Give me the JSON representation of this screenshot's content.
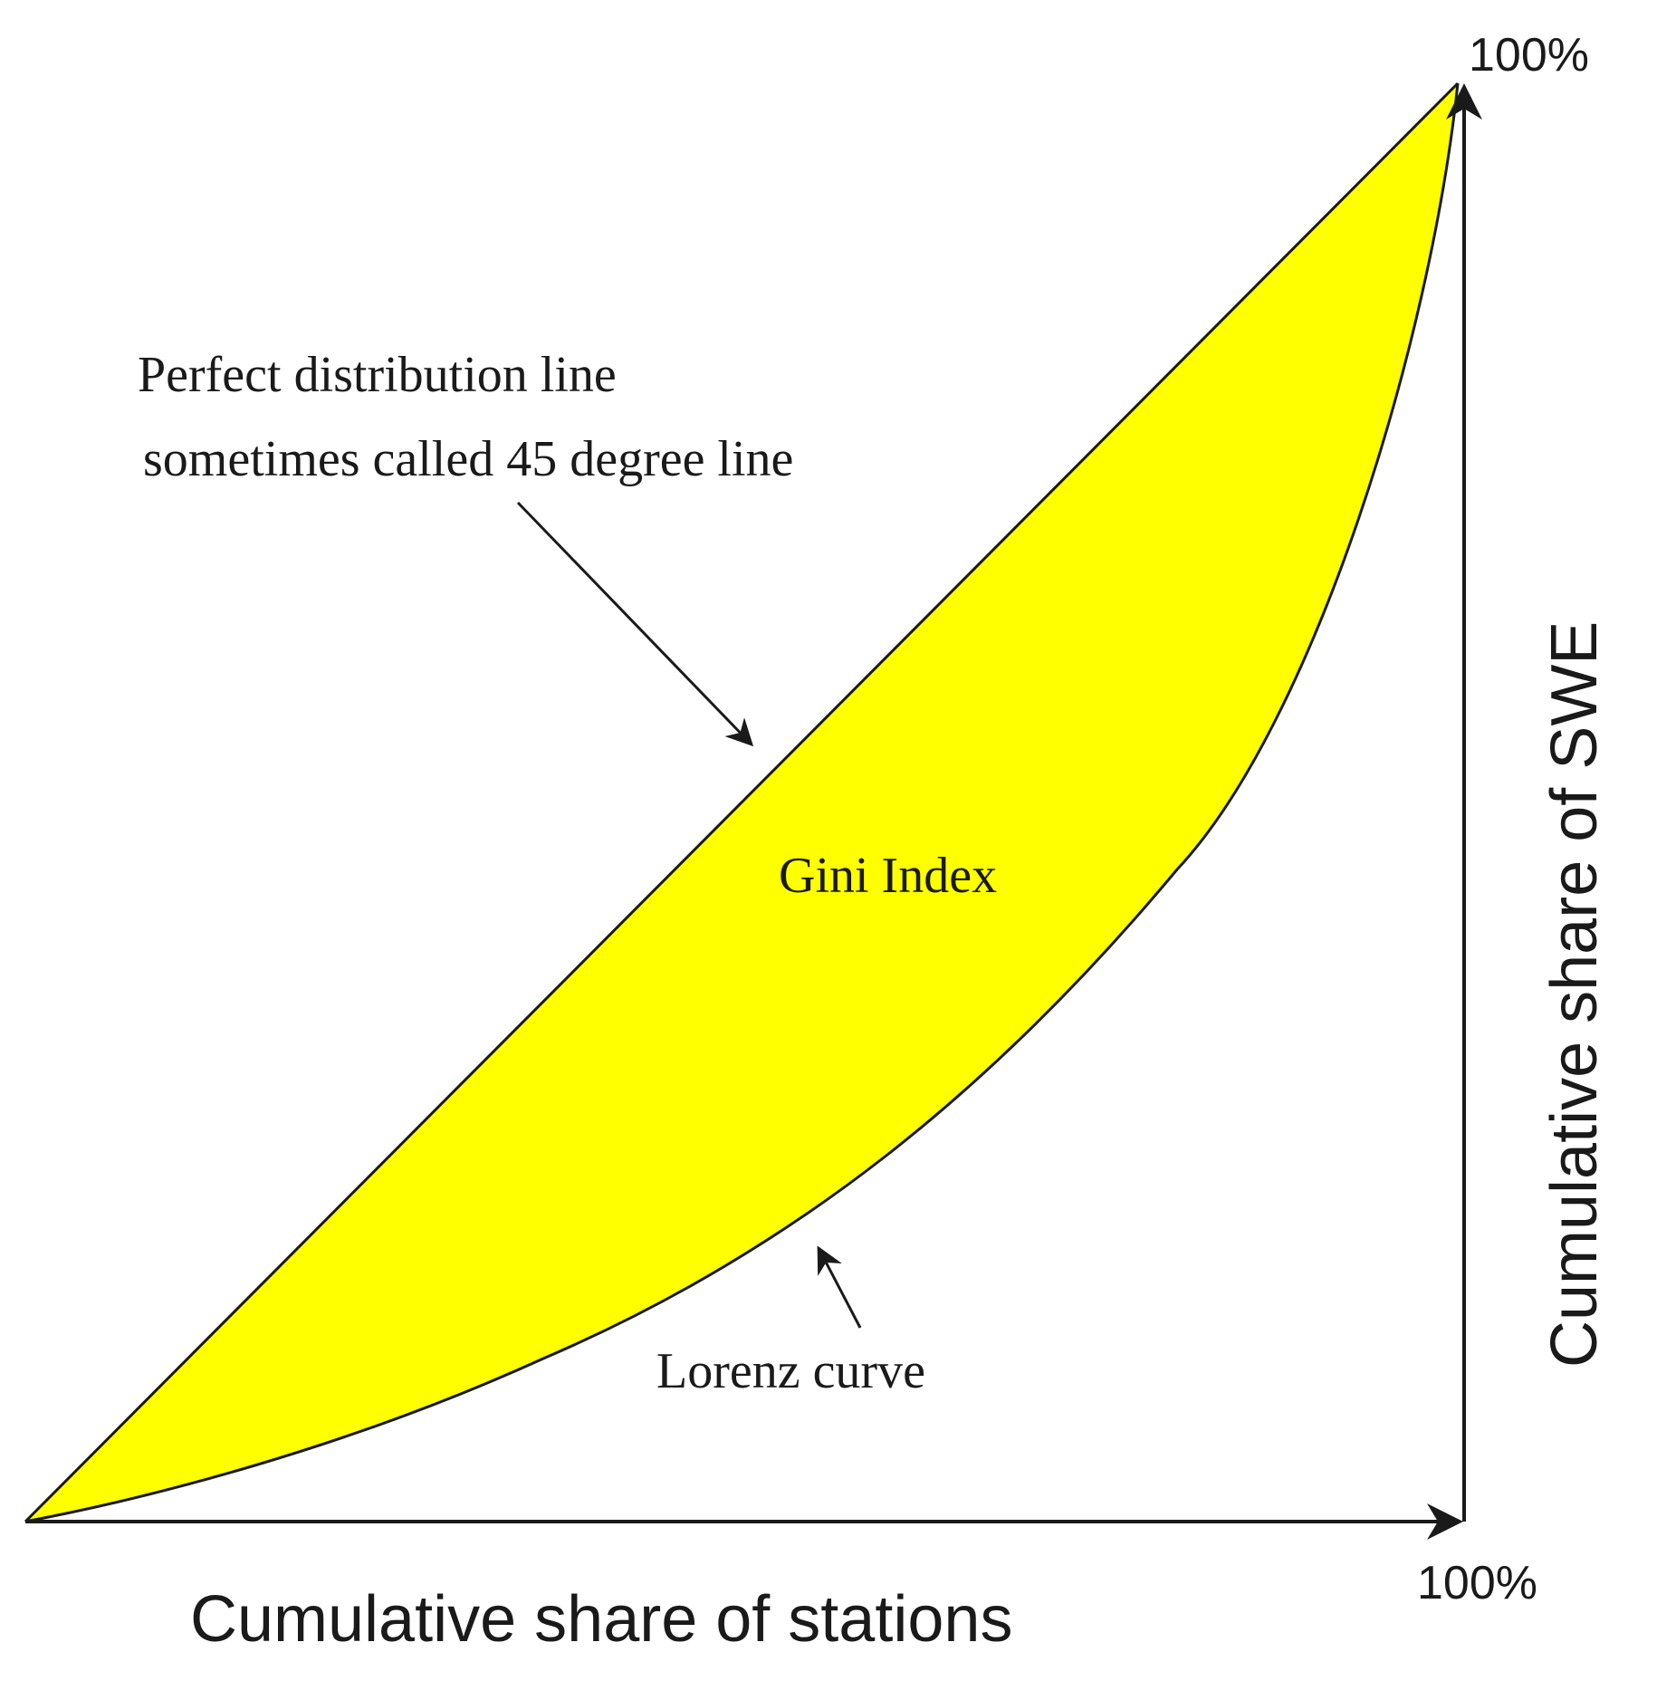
{
  "annotations": {
    "perfect_line_label_1": "Perfect distribution line",
    "perfect_line_label_2": "sometimes called 45 degree line",
    "area_label": "Gini Index",
    "curve_label": "Lorenz curve"
  },
  "axes": {
    "x_label": "Cumulative share of stations",
    "y_label": "Cumulative share of SWE",
    "x_max_label": "100%",
    "y_max_label": "100%"
  },
  "colors": {
    "area_fill": "#ffff00",
    "line": "#1a1a1a",
    "background": "#ffffff"
  }
}
